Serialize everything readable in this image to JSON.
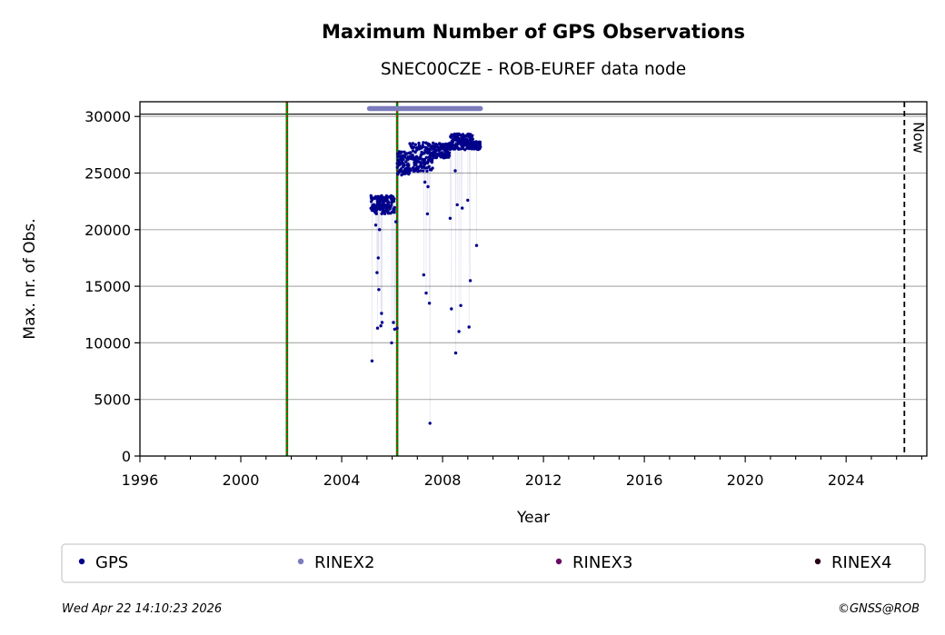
{
  "chart_data": {
    "type": "scatter",
    "title": "Maximum Number of GPS Observations",
    "subtitle": "SNEC00CZE - ROB-EUREF data node",
    "xlabel": "Year",
    "ylabel": "Max. nr. of Obs.",
    "xlim": [
      1996,
      2027.2
    ],
    "ylim": [
      0,
      31300
    ],
    "xticks": [
      1996,
      2000,
      2004,
      2008,
      2012,
      2016,
      2020,
      2024
    ],
    "yticks": [
      0,
      5000,
      10000,
      15000,
      20000,
      25000,
      30000
    ],
    "grid": "horizontal",
    "now_label": "Now",
    "now_x": 2026.31,
    "equipment_change_lines": [
      2001.83,
      2006.2
    ],
    "reference_level": 30200,
    "rinex2_coverage": {
      "y": 30700,
      "start": 2005.1,
      "end": 2009.5
    },
    "series": [
      {
        "name": "GPS",
        "color": "#00008b",
        "dense_bands": [
          {
            "x_start": 2005.15,
            "x_end": 2006.1,
            "y_min": 21000,
            "y_max": 23000
          },
          {
            "x_start": 2006.2,
            "x_end": 2006.7,
            "y_min": 24300,
            "y_max": 26900
          },
          {
            "x_start": 2006.7,
            "x_end": 2007.6,
            "y_min": 24500,
            "y_max": 27700
          },
          {
            "x_start": 2007.6,
            "x_end": 2008.3,
            "y_min": 26000,
            "y_max": 27700
          },
          {
            "x_start": 2008.3,
            "x_end": 2009.2,
            "y_min": 26700,
            "y_max": 28500
          },
          {
            "x_start": 2009.2,
            "x_end": 2009.5,
            "y_min": 26900,
            "y_max": 27800
          }
        ],
        "outliers": [
          {
            "x": 2005.2,
            "y": 8400
          },
          {
            "x": 2005.35,
            "y": 20400
          },
          {
            "x": 2005.4,
            "y": 16200
          },
          {
            "x": 2005.45,
            "y": 17500
          },
          {
            "x": 2005.47,
            "y": 14700
          },
          {
            "x": 2005.5,
            "y": 20000
          },
          {
            "x": 2005.42,
            "y": 11300
          },
          {
            "x": 2005.55,
            "y": 11500
          },
          {
            "x": 2005.58,
            "y": 12600
          },
          {
            "x": 2005.6,
            "y": 11800
          },
          {
            "x": 2005.98,
            "y": 10000
          },
          {
            "x": 2006.05,
            "y": 11800
          },
          {
            "x": 2006.1,
            "y": 11200
          },
          {
            "x": 2006.15,
            "y": 20700
          },
          {
            "x": 2006.2,
            "y": 11300
          },
          {
            "x": 2007.25,
            "y": 16000
          },
          {
            "x": 2007.3,
            "y": 24200
          },
          {
            "x": 2007.35,
            "y": 14400
          },
          {
            "x": 2007.4,
            "y": 21400
          },
          {
            "x": 2007.42,
            "y": 23800
          },
          {
            "x": 2007.48,
            "y": 13500
          },
          {
            "x": 2007.5,
            "y": 2900
          },
          {
            "x": 2008.3,
            "y": 21000
          },
          {
            "x": 2008.35,
            "y": 13000
          },
          {
            "x": 2008.5,
            "y": 25200
          },
          {
            "x": 2008.52,
            "y": 9100
          },
          {
            "x": 2008.58,
            "y": 22200
          },
          {
            "x": 2008.65,
            "y": 11000
          },
          {
            "x": 2008.72,
            "y": 13300
          },
          {
            "x": 2008.78,
            "y": 21900
          },
          {
            "x": 2009.0,
            "y": 22600
          },
          {
            "x": 2009.05,
            "y": 11400
          },
          {
            "x": 2009.1,
            "y": 15500
          },
          {
            "x": 2009.35,
            "y": 18600
          }
        ]
      },
      {
        "name": "RINEX2",
        "color": "#7b7bbd"
      },
      {
        "name": "RINEX3",
        "color": "#6b0a6b"
      },
      {
        "name": "RINEX4",
        "color": "#2a0018"
      }
    ],
    "legend": [
      {
        "label": "GPS",
        "color": "#00008b"
      },
      {
        "label": "RINEX2",
        "color": "#7b7bbd"
      },
      {
        "label": "RINEX3",
        "color": "#6b0a6b"
      },
      {
        "label": "RINEX4",
        "color": "#2a0018"
      }
    ],
    "legend_placement": "below"
  },
  "footer": {
    "timestamp": "Wed Apr 22 14:10:23 2026",
    "credit": "©GNSS@ROB"
  }
}
